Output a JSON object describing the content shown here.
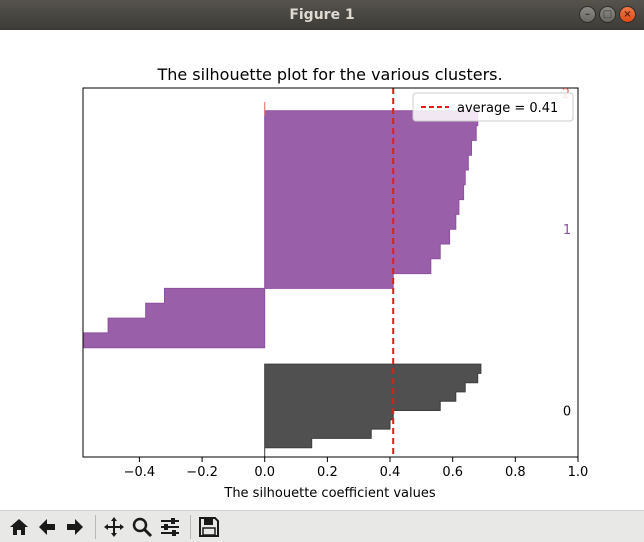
{
  "window": {
    "title": "Figure 1",
    "controls": [
      "minimize-icon",
      "maximize-icon",
      "close-icon"
    ]
  },
  "toolbar": {
    "buttons": [
      {
        "name": "home-button",
        "icon": "home-icon"
      },
      {
        "name": "back-button",
        "icon": "arrow-left-icon"
      },
      {
        "name": "forward-button",
        "icon": "arrow-right-icon"
      },
      {
        "name": "pan-button",
        "icon": "move-icon"
      },
      {
        "name": "zoom-button",
        "icon": "magnifier-icon"
      },
      {
        "name": "configure-subplots-button",
        "icon": "sliders-icon"
      },
      {
        "name": "save-button",
        "icon": "floppy-disk-icon"
      }
    ]
  },
  "chart_data": {
    "type": "bar",
    "orientation": "horizontal",
    "title": "The silhouette plot for the various clusters.",
    "xlabel": "The silhouette coefficient values",
    "ylabel": "",
    "xlim": [
      -0.58,
      1.0
    ],
    "xticks": [
      -0.4,
      -0.2,
      0.0,
      0.2,
      0.4,
      0.6,
      0.8,
      1.0
    ],
    "xtick_labels": [
      "−0.4",
      "−0.2",
      "0.0",
      "0.2",
      "0.4",
      "0.6",
      "0.8",
      "1.0"
    ],
    "grid": false,
    "legend": {
      "placement": "top-right",
      "entries": [
        "average = 0.41"
      ]
    },
    "average_line": {
      "value": 0.41,
      "color": "#e41a1c",
      "style": "dashed",
      "label": "average = 0.41"
    },
    "clusters": [
      {
        "label": "0",
        "color": "#3d3d3d",
        "coefficients": [
          0.69,
          0.68,
          0.64,
          0.61,
          0.56,
          0.41,
          0.4,
          0.34,
          0.15,
          0.0
        ],
        "y_range": [
          0.0,
          10.2
        ]
      },
      {
        "label": "1",
        "color": "#8e4fa0",
        "coefficients": [
          0.68,
          0.675,
          0.66,
          0.65,
          0.64,
          0.635,
          0.62,
          0.61,
          0.59,
          0.56,
          0.53,
          0.41,
          -0.32,
          -0.38,
          -0.5,
          -0.58
        ],
        "y_range": [
          12.0,
          38.0
        ]
      }
    ],
    "partial_labels": [
      {
        "text": "2",
        "color": "#e8776b"
      },
      {
        "text": "|",
        "color": "#e8776b"
      }
    ]
  }
}
